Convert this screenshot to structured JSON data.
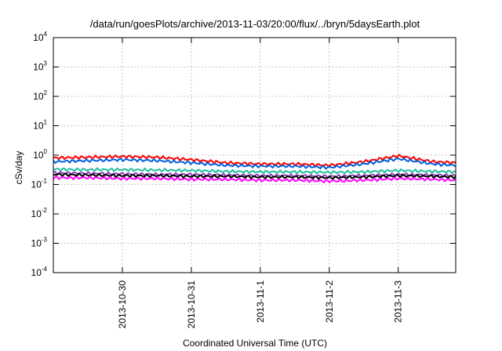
{
  "chart_data": {
    "type": "line",
    "title": "/data/run/goesPlots/archive/2013-11-03/20:00/flux/../bryn/5daysEarth.plot",
    "xlabel": "Coordinated Universal Time (UTC)",
    "ylabel": "cSv/day",
    "y_scale": "log",
    "ylim": [
      0.0001,
      10000
    ],
    "xlim": [
      "2013-10-29T00:00",
      "2013-11-03T20:00"
    ],
    "y_ticks": [
      {
        "base": "10",
        "exp": "4"
      },
      {
        "base": "10",
        "exp": "3"
      },
      {
        "base": "10",
        "exp": "2"
      },
      {
        "base": "10",
        "exp": "1"
      },
      {
        "base": "10",
        "exp": "0"
      },
      {
        "base": "10",
        "exp": "-1"
      },
      {
        "base": "10",
        "exp": "-2"
      },
      {
        "base": "10",
        "exp": "-3"
      },
      {
        "base": "10",
        "exp": "-4"
      }
    ],
    "x_ticks": [
      "2013-10-30",
      "2013-10-31",
      "2013-11-1",
      "2013-11-2",
      "2013-11-3"
    ],
    "x_tick_dates": [
      "2013-10-30T00:00",
      "2013-10-31T00:00",
      "2013-11-01T00:00",
      "2013-11-02T00:00",
      "2013-11-03T00:00"
    ],
    "grid": true,
    "x": [
      "2013-10-29T00:00",
      "2013-10-29T12:00",
      "2013-10-30T00:00",
      "2013-10-30T12:00",
      "2013-10-31T00:00",
      "2013-10-31T12:00",
      "2013-11-01T00:00",
      "2013-11-01T12:00",
      "2013-11-02T00:00",
      "2013-11-02T12:00",
      "2013-11-03T00:00",
      "2013-11-03T12:00",
      "2013-11-03T20:00"
    ],
    "series": [
      {
        "color": "#ff0000",
        "values": [
          0.8,
          0.85,
          0.9,
          0.85,
          0.7,
          0.55,
          0.5,
          0.5,
          0.45,
          0.6,
          0.95,
          0.6,
          0.55
        ]
      },
      {
        "color": "#0060e0",
        "values": [
          0.6,
          0.65,
          0.7,
          0.65,
          0.55,
          0.45,
          0.42,
          0.42,
          0.38,
          0.5,
          0.75,
          0.5,
          0.45
        ]
      },
      {
        "color": "#20c0a0",
        "values": [
          0.33,
          0.32,
          0.32,
          0.31,
          0.3,
          0.28,
          0.27,
          0.27,
          0.26,
          0.27,
          0.3,
          0.28,
          0.27
        ]
      },
      {
        "color": "#9040c0",
        "values": [
          0.25,
          0.24,
          0.23,
          0.22,
          0.22,
          0.21,
          0.2,
          0.2,
          0.19,
          0.2,
          0.22,
          0.21,
          0.2
        ]
      },
      {
        "color": "#000000",
        "values": [
          0.22,
          0.21,
          0.2,
          0.2,
          0.19,
          0.19,
          0.18,
          0.18,
          0.17,
          0.18,
          0.2,
          0.19,
          0.18
        ]
      },
      {
        "color": "#ff00ff",
        "values": [
          0.17,
          0.17,
          0.16,
          0.16,
          0.15,
          0.15,
          0.14,
          0.14,
          0.13,
          0.14,
          0.16,
          0.15,
          0.14
        ]
      }
    ]
  }
}
